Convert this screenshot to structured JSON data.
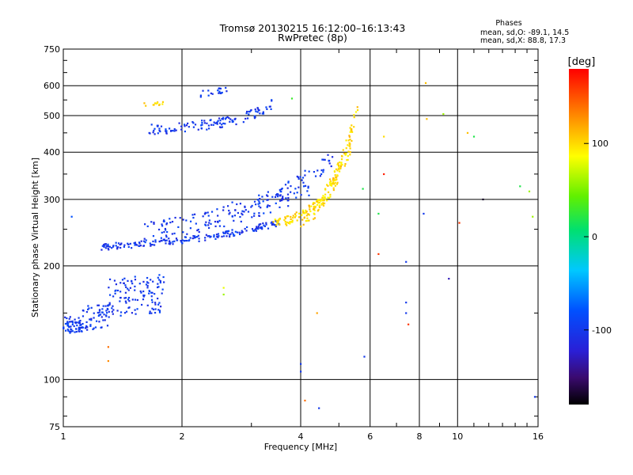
{
  "chart_data": {
    "type": "scatter",
    "title": "Tromsø 20130215 16:12:00–16:13:43",
    "subtitle": "RwPretec (8p)",
    "stats": {
      "heading": "Phases",
      "line_o": "mean, sd,O: -89.1, 14.5",
      "line_x": "mean, sd,X:  88.8, 17.3"
    },
    "xlabel": "Frequency [MHz]",
    "ylabel": "Stationary phase Virtual Height [km]",
    "x_scale": "log",
    "y_scale": "log",
    "xlim": [
      1,
      16
    ],
    "ylim": [
      75,
      750
    ],
    "x_ticks": [
      1,
      2,
      4,
      6,
      8,
      10,
      16
    ],
    "x_tick_labels": [
      "1",
      "2",
      "4",
      "6",
      "8",
      "10",
      "16"
    ],
    "x_gridlines": [
      2,
      4,
      6,
      8,
      10
    ],
    "y_ticks": [
      75,
      100,
      200,
      300,
      400,
      500,
      600,
      750
    ],
    "y_tick_labels": [
      "75",
      "100",
      "200",
      "300",
      "400",
      "500",
      "600",
      "750"
    ],
    "y_gridlines": [
      100,
      200,
      300,
      400,
      500,
      600
    ],
    "grid": true,
    "colorbar": {
      "label": "[deg]",
      "range": [
        -180,
        180
      ],
      "ticks": [
        100,
        0,
        -100
      ],
      "tick_labels": [
        "100",
        "0",
        "-100"
      ]
    },
    "series": [
      {
        "description_color_phase": -100,
        "segments": [
          {
            "f0": 1.0,
            "f1": 1.12,
            "h0": 140,
            "h1": 138,
            "n": 60,
            "spread": 0.05
          },
          {
            "f0": 1.1,
            "f1": 1.3,
            "h0": 145,
            "h1": 150,
            "n": 60,
            "spread": 0.08
          },
          {
            "f0": 1.3,
            "f1": 1.8,
            "h0": 165,
            "h1": 170,
            "n": 120,
            "spread": 0.12
          },
          {
            "f0": 1.25,
            "f1": 1.75,
            "h0": 225,
            "h1": 232,
            "n": 60,
            "spread": 0.02
          },
          {
            "f0": 1.75,
            "f1": 3.6,
            "h0": 232,
            "h1": 262,
            "n": 130,
            "spread": 0.02
          },
          {
            "f0": 1.6,
            "f1": 4.2,
            "h0": 250,
            "h1": 320,
            "n": 130,
            "spread": 0.06
          },
          {
            "f0": 2.6,
            "f1": 4.9,
            "h0": 280,
            "h1": 390,
            "n": 70,
            "spread": 0.05
          },
          {
            "f0": 1.65,
            "f1": 2.9,
            "h0": 460,
            "h1": 490,
            "n": 90,
            "spread": 0.03
          },
          {
            "f0": 2.9,
            "f1": 3.4,
            "h0": 500,
            "h1": 540,
            "n": 30,
            "spread": 0.03
          },
          {
            "f0": 2.2,
            "f1": 2.6,
            "h0": 570,
            "h1": 590,
            "n": 20,
            "spread": 0.02
          }
        ]
      },
      {
        "description_color_phase": 100,
        "segments": [
          {
            "f0": 3.4,
            "f1": 4.6,
            "h0": 258,
            "h1": 300,
            "n": 90,
            "spread": 0.03
          },
          {
            "f0": 4.0,
            "f1": 5.4,
            "h0": 260,
            "h1": 420,
            "n": 80,
            "spread": 0.04
          },
          {
            "f0": 4.6,
            "f1": 5.6,
            "h0": 320,
            "h1": 540,
            "n": 60,
            "spread": 0.04
          },
          {
            "f0": 1.6,
            "f1": 1.8,
            "h0": 535,
            "h1": 540,
            "n": 12,
            "spread": 0.01
          }
        ]
      }
    ],
    "isolated_points": [
      {
        "f": 1.05,
        "h": 270,
        "phase": -80
      },
      {
        "f": 1.3,
        "h": 122,
        "phase": 140
      },
      {
        "f": 1.3,
        "h": 112,
        "phase": 130
      },
      {
        "f": 2.55,
        "h": 175,
        "phase": 80
      },
      {
        "f": 2.55,
        "h": 168,
        "phase": 60
      },
      {
        "f": 3.8,
        "h": 555,
        "phase": 30
      },
      {
        "f": 4.1,
        "h": 88,
        "phase": 140
      },
      {
        "f": 4.4,
        "h": 150,
        "phase": 120
      },
      {
        "f": 4.45,
        "h": 84,
        "phase": -100
      },
      {
        "f": 5.8,
        "h": 115,
        "phase": -100
      },
      {
        "f": 6.3,
        "h": 275,
        "phase": 20
      },
      {
        "f": 6.3,
        "h": 215,
        "phase": 160
      },
      {
        "f": 6.5,
        "h": 350,
        "phase": 170
      },
      {
        "f": 6.5,
        "h": 440,
        "phase": 100
      },
      {
        "f": 7.4,
        "h": 205,
        "phase": -100
      },
      {
        "f": 7.4,
        "h": 160,
        "phase": -100
      },
      {
        "f": 7.5,
        "h": 140,
        "phase": 160
      },
      {
        "f": 7.4,
        "h": 150,
        "phase": -100
      },
      {
        "f": 8.2,
        "h": 275,
        "phase": -100
      },
      {
        "f": 8.3,
        "h": 610,
        "phase": 110
      },
      {
        "f": 8.35,
        "h": 490,
        "phase": 110
      },
      {
        "f": 9.2,
        "h": 505,
        "phase": 60
      },
      {
        "f": 9.5,
        "h": 185,
        "phase": -130
      },
      {
        "f": 10.1,
        "h": 260,
        "phase": 160
      },
      {
        "f": 10.6,
        "h": 450,
        "phase": 110
      },
      {
        "f": 11.0,
        "h": 440,
        "phase": 20
      },
      {
        "f": 11.6,
        "h": 300,
        "phase": -170
      },
      {
        "f": 14.4,
        "h": 325,
        "phase": 20
      },
      {
        "f": 15.2,
        "h": 315,
        "phase": 60
      },
      {
        "f": 15.5,
        "h": 270,
        "phase": 60
      },
      {
        "f": 15.7,
        "h": 90,
        "phase": -100
      },
      {
        "f": 4.0,
        "h": 110,
        "phase": -100
      },
      {
        "f": 4.0,
        "h": 105,
        "phase": -100
      },
      {
        "f": 5.75,
        "h": 320,
        "phase": 20
      }
    ]
  }
}
